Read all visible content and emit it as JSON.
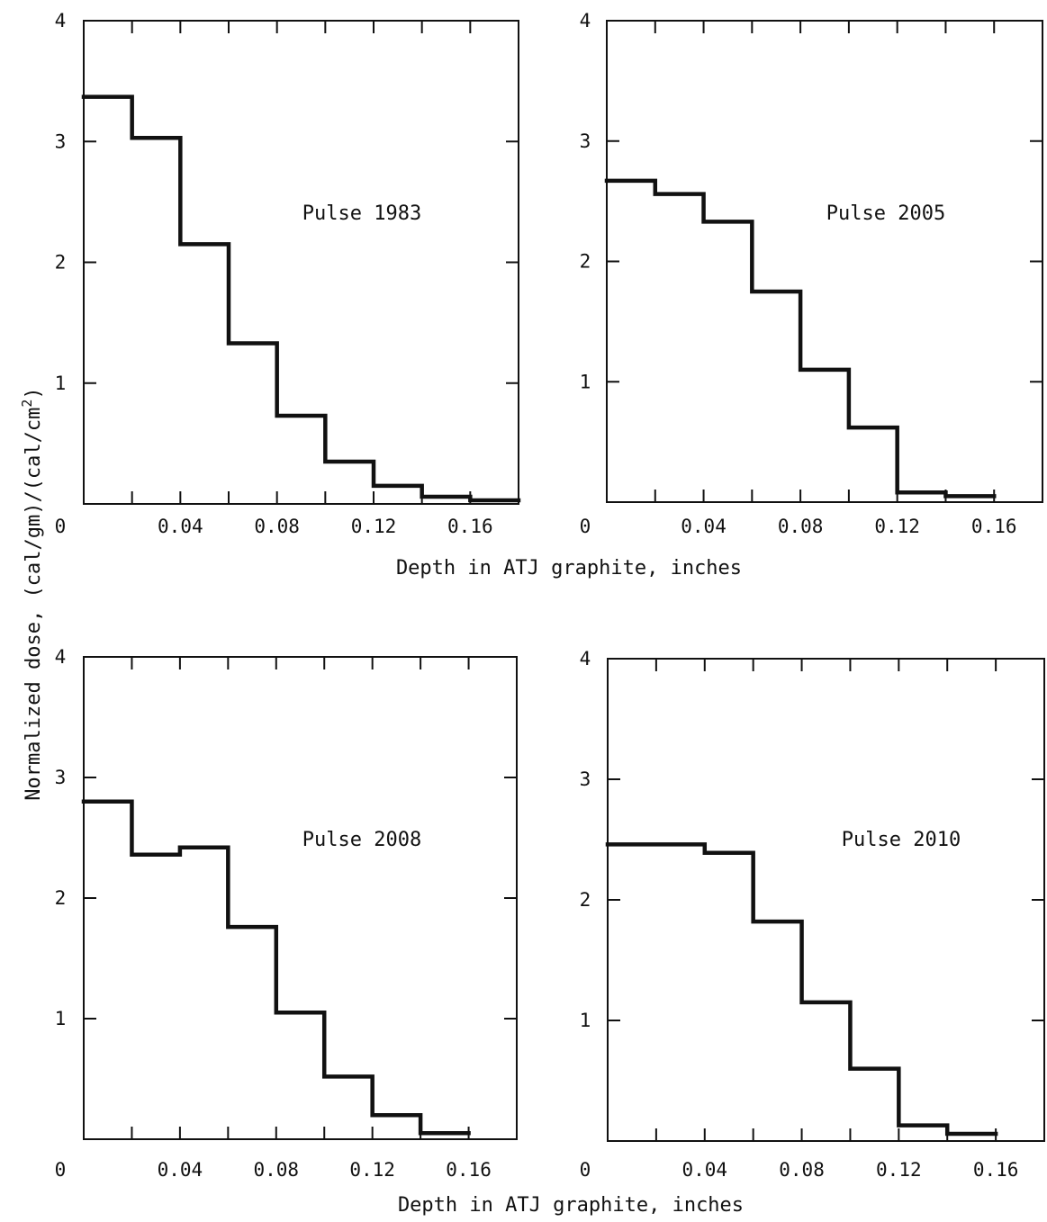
{
  "chart_data": [
    {
      "type": "line",
      "style": "step",
      "annotation": "Pulse 1983",
      "bin_edges": [
        0,
        0.02,
        0.04,
        0.06,
        0.08,
        0.1,
        0.12,
        0.14,
        0.16,
        0.18
      ],
      "values": [
        3.37,
        3.03,
        2.15,
        1.33,
        0.73,
        0.35,
        0.15,
        0.06,
        0.03
      ],
      "xlim": [
        0,
        0.18
      ],
      "ylim": [
        0,
        4
      ],
      "x_ticks": [
        "0.04",
        "0.08",
        "0.12",
        "0.16"
      ],
      "x_zero_label": "0",
      "y_ticks": [
        "1",
        "2",
        "3",
        "4"
      ]
    },
    {
      "type": "line",
      "style": "step",
      "annotation": "Pulse 2005",
      "bin_edges": [
        0,
        0.02,
        0.04,
        0.06,
        0.08,
        0.1,
        0.12,
        0.14,
        0.16
      ],
      "values": [
        2.67,
        2.56,
        2.33,
        1.75,
        1.1,
        0.62,
        0.08,
        0.05
      ],
      "xlim": [
        0,
        0.18
      ],
      "ylim": [
        0,
        4
      ],
      "x_ticks": [
        "0.04",
        "0.08",
        "0.12",
        "0.16"
      ],
      "x_zero_label": "0",
      "y_ticks": [
        "1",
        "2",
        "3",
        "4"
      ]
    },
    {
      "type": "line",
      "style": "step",
      "annotation": "Pulse 2008",
      "bin_edges": [
        0,
        0.02,
        0.03,
        0.04,
        0.06,
        0.08,
        0.1,
        0.12,
        0.14,
        0.16
      ],
      "values": [
        2.8,
        2.36,
        2.36,
        2.42,
        1.76,
        1.05,
        0.52,
        0.2,
        0.05
      ],
      "xlim": [
        0,
        0.18
      ],
      "ylim": [
        0,
        4
      ],
      "x_ticks": [
        "0.04",
        "0.08",
        "0.12",
        "0.16"
      ],
      "x_zero_label": "0",
      "y_ticks": [
        "1",
        "2",
        "3",
        "4"
      ]
    },
    {
      "type": "line",
      "style": "step",
      "annotation": "Pulse 2010",
      "bin_edges": [
        0,
        0.02,
        0.04,
        0.06,
        0.08,
        0.1,
        0.12,
        0.14,
        0.16
      ],
      "values": [
        2.46,
        2.46,
        2.39,
        1.82,
        1.15,
        0.6,
        0.13,
        0.06
      ],
      "xlim": [
        0,
        0.18
      ],
      "ylim": [
        0,
        4
      ],
      "x_ticks": [
        "0.04",
        "0.08",
        "0.12",
        "0.16"
      ],
      "x_zero_label": "0",
      "y_ticks": [
        "1",
        "2",
        "3",
        "4"
      ]
    }
  ],
  "shared": {
    "xlabel_top": "Depth in ATJ graphite, inches",
    "xlabel_bottom": "Depth in ATJ graphite, inches",
    "ylabel_main": "Normalized dose,  (cal/gm)/(cal/cm",
    "ylabel_superscript": "2",
    "ylabel_close": ")"
  }
}
